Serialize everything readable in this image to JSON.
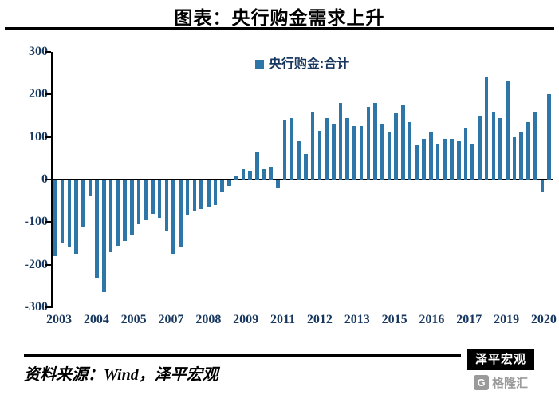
{
  "title": "图表：央行购金需求上升",
  "legend": {
    "label": "央行购金:合计"
  },
  "source_text": "资料来源：Wind，泽平宏观",
  "badge_text": "泽平宏观",
  "logo": {
    "mark": "G",
    "text": "格隆汇"
  },
  "colors": {
    "bar": "#2E75A8",
    "axis_text": "#17375E"
  },
  "y_ticks": [
    "300",
    "200",
    "100",
    "0",
    "-100",
    "-200",
    "-300"
  ],
  "x_ticks": [
    "2003",
    "2004",
    "2005",
    "2007",
    "2008",
    "2009",
    "2011",
    "2012",
    "2013",
    "2015",
    "2016",
    "2017",
    "2019",
    "2020"
  ],
  "chart_data": {
    "type": "bar",
    "title": "图表：央行购金需求上升",
    "series_name": "央行购金:合计",
    "ylabel": "",
    "xlabel": "",
    "ylim": [
      -300,
      300
    ],
    "grid": false,
    "legend_position": "top-center",
    "x": [
      "2003Q1",
      "2003Q2",
      "2003Q3",
      "2003Q4",
      "2004Q1",
      "2004Q2",
      "2004Q3",
      "2004Q4",
      "2005Q1",
      "2005Q2",
      "2005Q3",
      "2005Q4",
      "2006Q1",
      "2006Q2",
      "2006Q3",
      "2006Q4",
      "2007Q1",
      "2007Q2",
      "2007Q3",
      "2007Q4",
      "2008Q1",
      "2008Q2",
      "2008Q3",
      "2008Q4",
      "2009Q1",
      "2009Q2",
      "2009Q3",
      "2009Q4",
      "2010Q1",
      "2010Q2",
      "2010Q3",
      "2010Q4",
      "2011Q1",
      "2011Q2",
      "2011Q3",
      "2011Q4",
      "2012Q1",
      "2012Q2",
      "2012Q3",
      "2012Q4",
      "2013Q1",
      "2013Q2",
      "2013Q3",
      "2013Q4",
      "2014Q1",
      "2014Q2",
      "2014Q3",
      "2014Q4",
      "2015Q1",
      "2015Q2",
      "2015Q3",
      "2015Q4",
      "2016Q1",
      "2016Q2",
      "2016Q3",
      "2016Q4",
      "2017Q1",
      "2017Q2",
      "2017Q3",
      "2017Q4",
      "2018Q1",
      "2018Q2",
      "2018Q3",
      "2018Q4",
      "2019Q1",
      "2019Q2",
      "2019Q3",
      "2019Q4",
      "2020Q1",
      "2020Q2",
      "2020Q3",
      "2020Q4"
    ],
    "values": [
      -180,
      -150,
      -160,
      -175,
      -110,
      -40,
      -230,
      -265,
      -170,
      -155,
      -145,
      -130,
      -105,
      -95,
      -80,
      -90,
      -120,
      -175,
      -160,
      -85,
      -75,
      -70,
      -65,
      -60,
      -30,
      -15,
      10,
      25,
      20,
      65,
      25,
      30,
      -20,
      140,
      145,
      90,
      60,
      160,
      115,
      145,
      130,
      180,
      145,
      125,
      125,
      170,
      180,
      130,
      110,
      155,
      175,
      135,
      80,
      95,
      110,
      85,
      95,
      95,
      90,
      120,
      85,
      150,
      240,
      160,
      145,
      230,
      100,
      110,
      135,
      160,
      -30,
      200
    ]
  }
}
